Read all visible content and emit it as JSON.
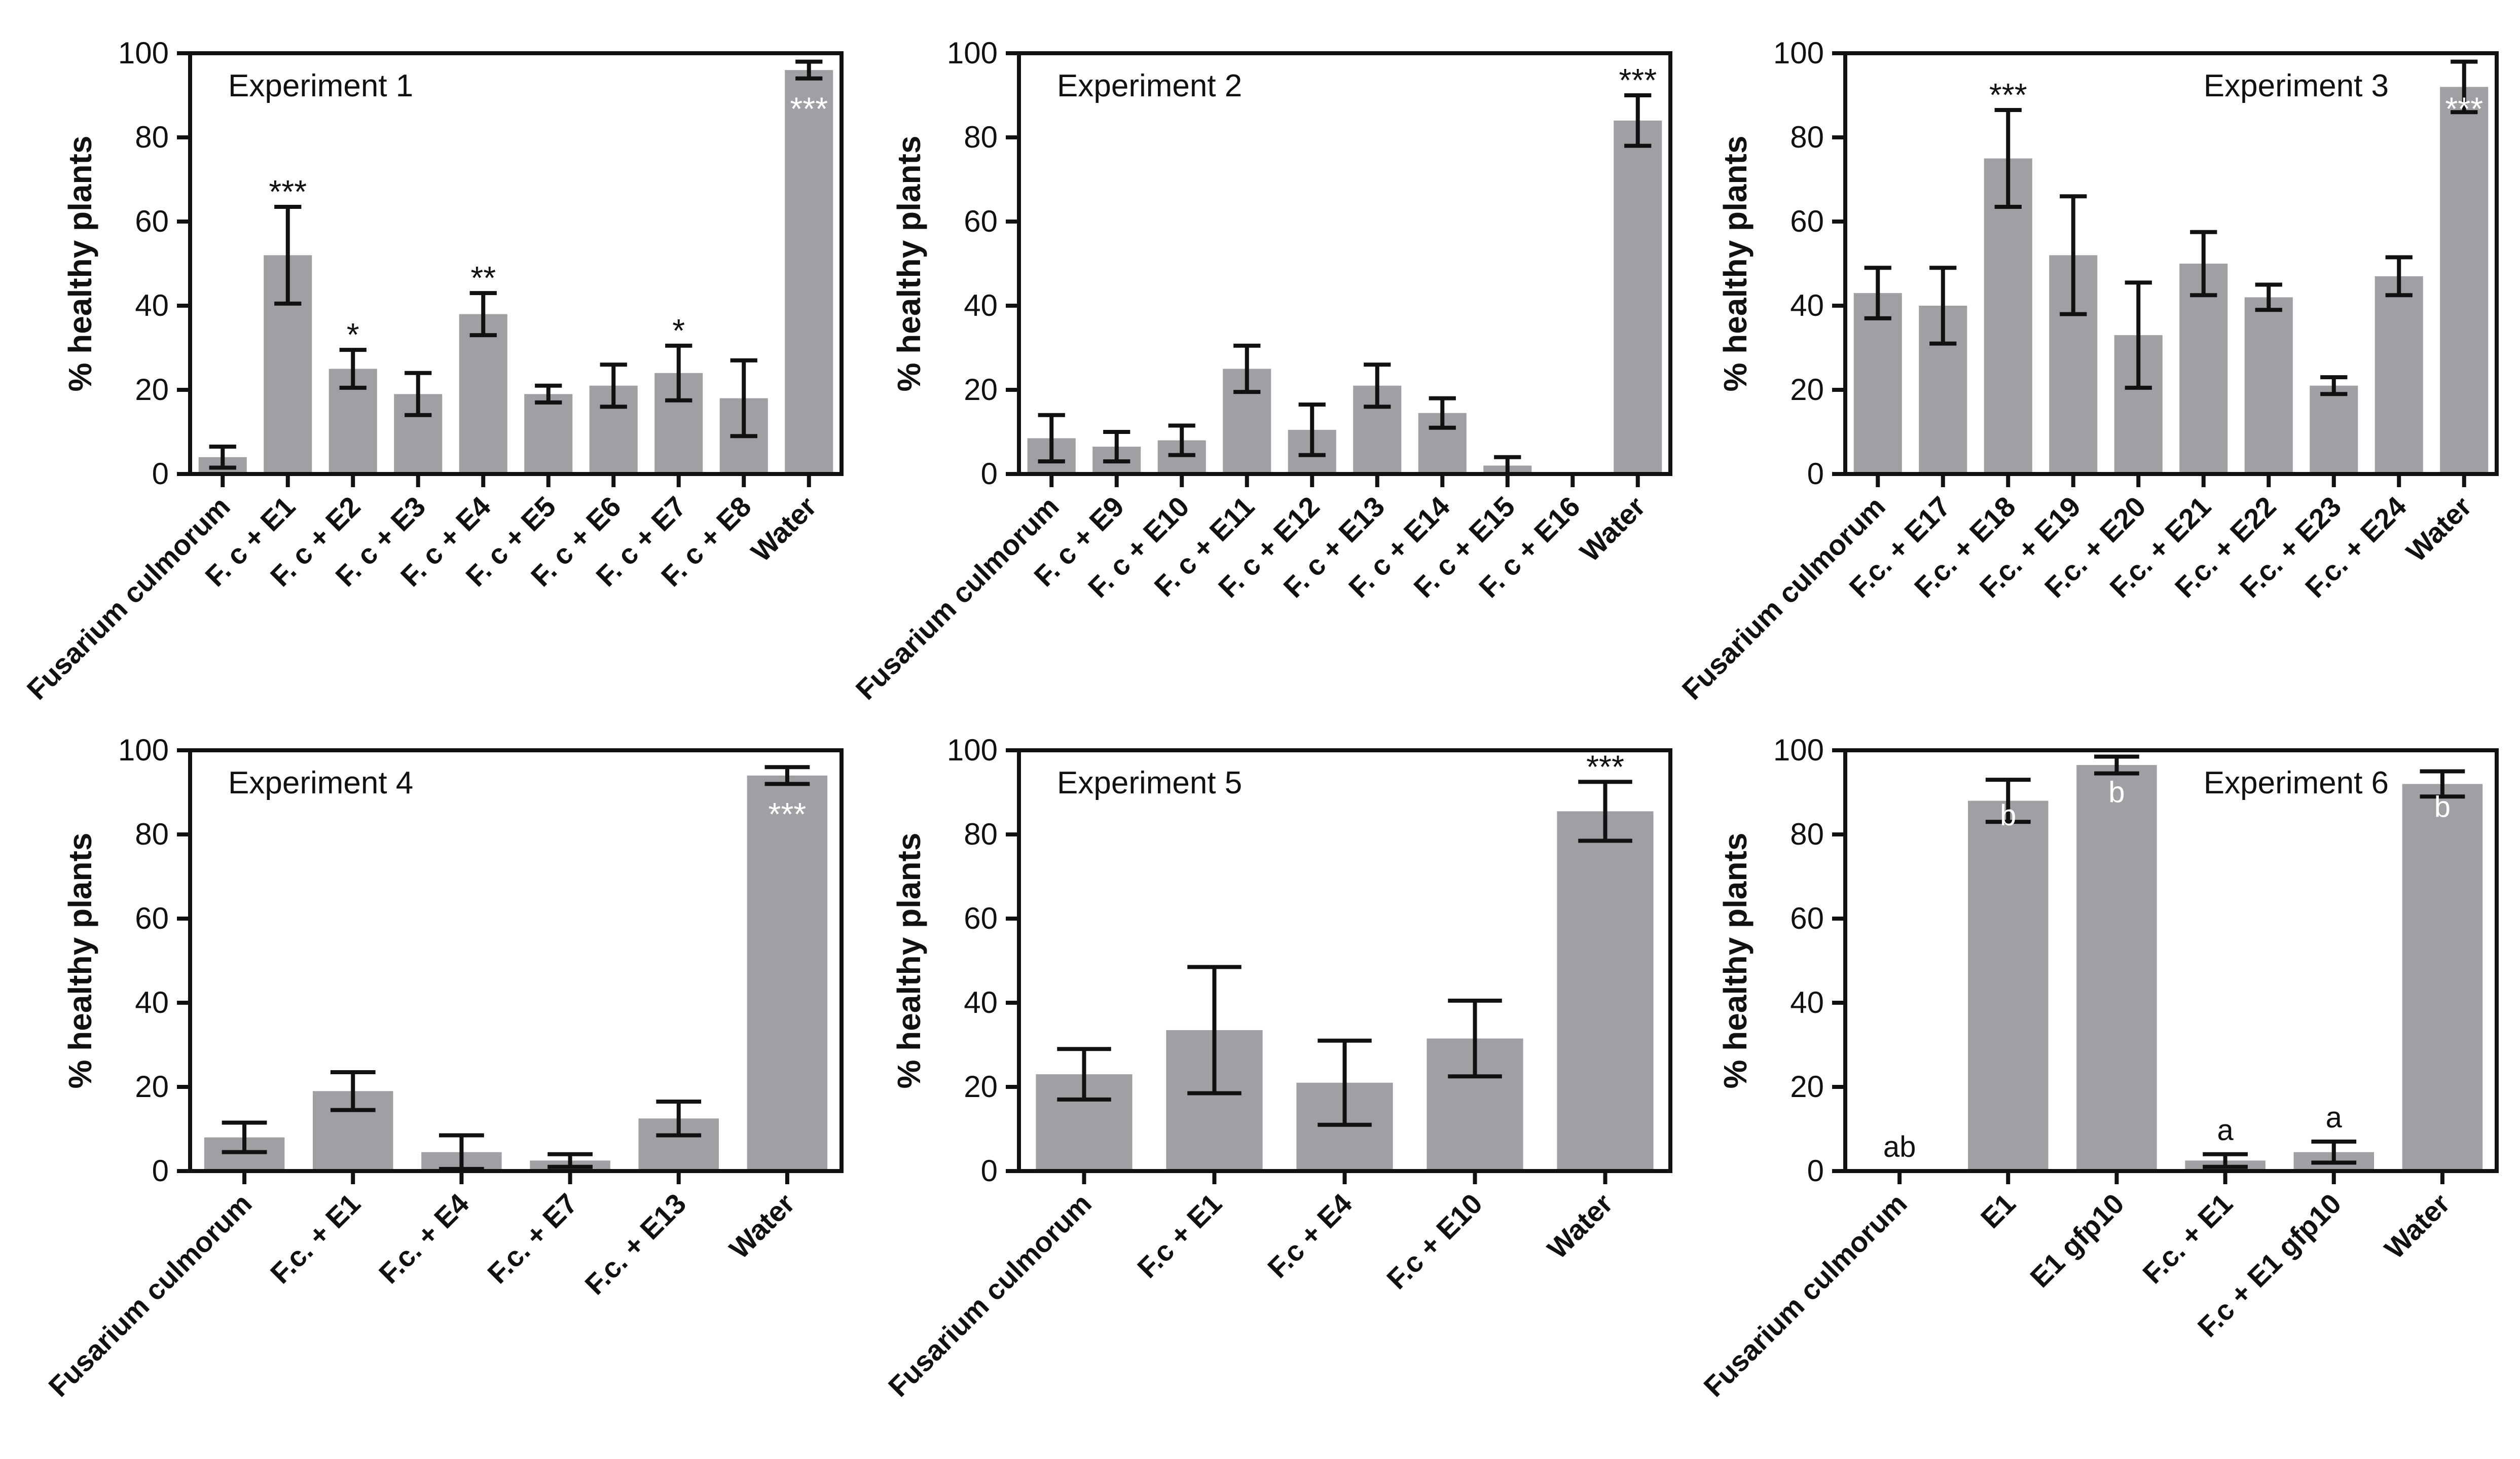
{
  "figure": {
    "bar_color": "#a0a0a4",
    "axis_color": "#111111",
    "annotation_color_on_bar": "#ffffff",
    "annotation_color_above": "#111111"
  },
  "chart_data": [
    {
      "type": "bar",
      "title": "Experiment 1",
      "ylabel": "%  healthy plants",
      "ylim": [
        0,
        100
      ],
      "yticks": [
        0,
        20,
        40,
        60,
        80,
        100
      ],
      "categories": [
        "Fusarium culmorum",
        "F. c + E1",
        "F. c + E2",
        "F. c + E3",
        "F. c + E4",
        "F. c + E5",
        "F. c + E6",
        "F. c + E7",
        "F. c + E8",
        "Water"
      ],
      "values": [
        4,
        52,
        25,
        19,
        38,
        19,
        21,
        24,
        18,
        96
      ],
      "errors": [
        2.5,
        11.5,
        4.5,
        5,
        5,
        2,
        5,
        6.5,
        9,
        2
      ],
      "annotations": [
        "",
        "***",
        "*",
        "",
        "**",
        "",
        "",
        "*",
        "",
        "***"
      ],
      "annotation_on_bar": [
        false,
        false,
        false,
        false,
        false,
        false,
        false,
        false,
        false,
        true
      ]
    },
    {
      "type": "bar",
      "title": "Experiment 2",
      "ylabel": "%  healthy plants",
      "ylim": [
        0,
        100
      ],
      "yticks": [
        0,
        20,
        40,
        60,
        80,
        100
      ],
      "categories": [
        "Fusarium culmorum",
        "F. c + E9",
        "F. c + E10",
        "F. c + E11",
        "F. c + E12",
        "F. c + E13",
        "F. c + E14",
        "F. c + E15",
        "F. c + E16",
        "Water"
      ],
      "values": [
        8.5,
        6.5,
        8,
        25,
        10.5,
        21,
        14.5,
        2,
        0,
        84
      ],
      "errors": [
        5.5,
        3.5,
        3.5,
        5.5,
        6,
        5,
        3.5,
        2,
        0,
        6
      ],
      "annotations": [
        "",
        "",
        "",
        "",
        "",
        "",
        "",
        "",
        "",
        "***"
      ],
      "annotation_on_bar": [
        false,
        false,
        false,
        false,
        false,
        false,
        false,
        false,
        false,
        false
      ]
    },
    {
      "type": "bar",
      "title": "Experiment 3",
      "ylabel": "%  healthy plants",
      "ylim": [
        0,
        100
      ],
      "yticks": [
        0,
        20,
        40,
        60,
        80,
        100
      ],
      "categories": [
        "Fusarium culmorum",
        "F.c. + E17",
        "F.c. + E18",
        "F.c. + E19",
        "F.c. + E20",
        "F.c. + E21",
        "F.c. + E22",
        "F.c. + E23",
        "F.c. + E24",
        "Water"
      ],
      "values": [
        43,
        40,
        75,
        52,
        33,
        50,
        42,
        21,
        47,
        92
      ],
      "errors": [
        6,
        9,
        11.5,
        14,
        12.5,
        7.5,
        3,
        2,
        4.5,
        6
      ],
      "annotations": [
        "",
        "",
        "***",
        "",
        "",
        "",
        "",
        "",
        "",
        "***"
      ],
      "annotation_on_bar": [
        false,
        false,
        false,
        false,
        false,
        false,
        false,
        false,
        false,
        true
      ]
    },
    {
      "type": "bar",
      "title": "Experiment 4",
      "ylabel": "%  healthy plants",
      "ylim": [
        0,
        100
      ],
      "yticks": [
        0,
        20,
        40,
        60,
        80,
        100
      ],
      "categories": [
        "Fusarium culmorum",
        "F.c. + E1",
        "F.c. + E4",
        "F.c. + E7",
        "F.c. + E13",
        "Water"
      ],
      "values": [
        8,
        19,
        4.5,
        2.5,
        12.5,
        94
      ],
      "errors": [
        3.5,
        4.5,
        4,
        1.5,
        4,
        2
      ],
      "annotations": [
        "",
        "",
        "",
        "",
        "",
        "***"
      ],
      "annotation_on_bar": [
        false,
        false,
        false,
        false,
        false,
        true
      ]
    },
    {
      "type": "bar",
      "title": "Experiment 5",
      "ylabel": "%  healthy plants",
      "ylim": [
        0,
        100
      ],
      "yticks": [
        0,
        20,
        40,
        60,
        80,
        100
      ],
      "categories": [
        "Fusarium culmorum",
        "F.c + E1",
        "F.c + E4",
        "F.c + E10",
        "Water"
      ],
      "values": [
        23,
        33.5,
        21,
        31.5,
        85.5
      ],
      "errors": [
        6,
        15,
        10,
        9,
        7
      ],
      "annotations": [
        "",
        "",
        "",
        "",
        "***"
      ],
      "annotation_on_bar": [
        false,
        false,
        false,
        false,
        false
      ]
    },
    {
      "type": "bar",
      "title": "Experiment 6",
      "ylabel": "%  healthy plants",
      "ylim": [
        0,
        100
      ],
      "yticks": [
        0,
        20,
        40,
        60,
        80,
        100
      ],
      "categories": [
        "Fusarium culmorum",
        "E1",
        "E1 gfp10",
        "F.c. + E1",
        "F.c + E1 gfp10",
        "Water"
      ],
      "values": [
        0,
        88,
        96.5,
        2.5,
        4.5,
        92
      ],
      "errors": [
        0,
        5,
        2,
        1.5,
        2.5,
        3
      ],
      "annotations": [
        "ab",
        "b",
        "b",
        "a",
        "a",
        "b"
      ],
      "annotation_on_bar": [
        false,
        true,
        true,
        false,
        false,
        true
      ]
    }
  ]
}
